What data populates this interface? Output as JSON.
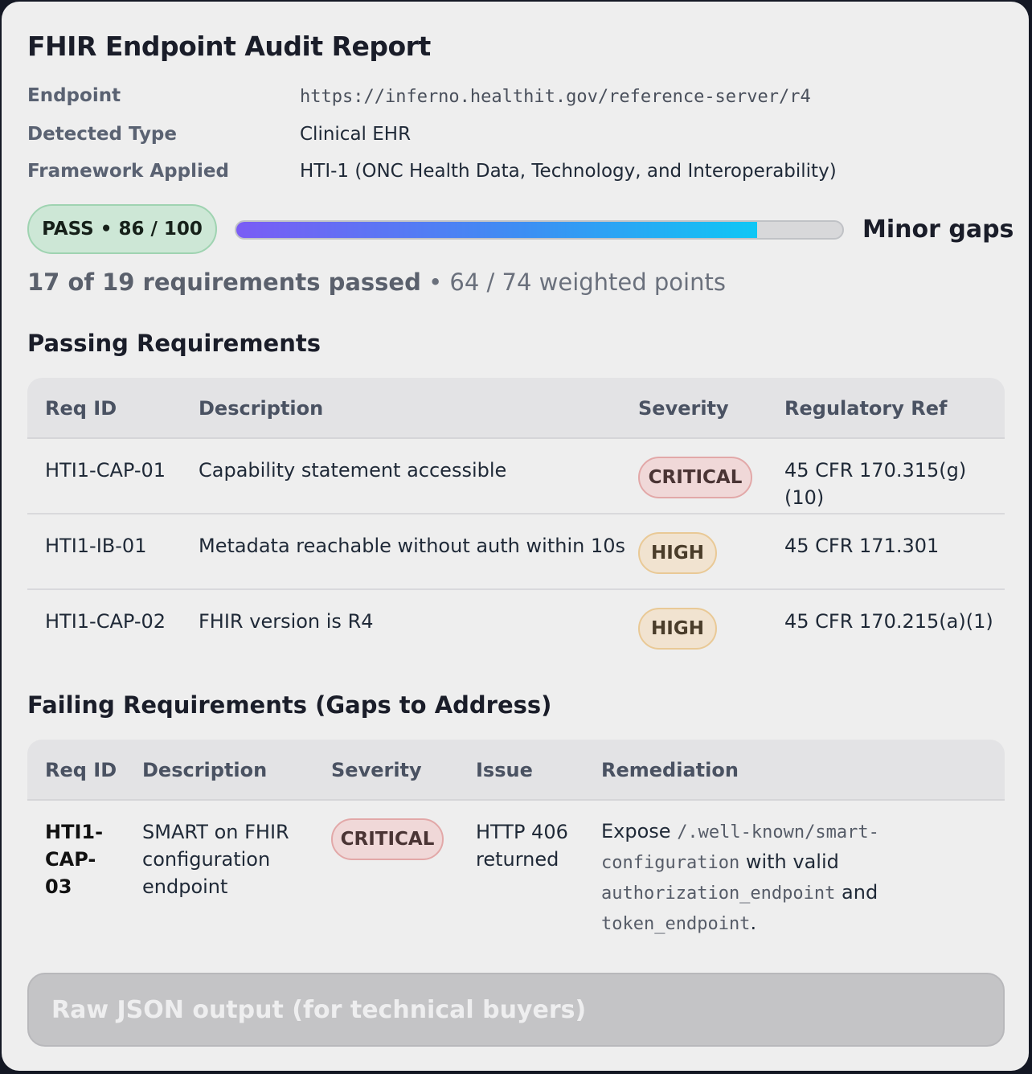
{
  "report": {
    "title": "FHIR Endpoint Audit Report",
    "meta": [
      {
        "label": "Endpoint",
        "value": "https://inferno.healthit.gov/reference-server/r4"
      },
      {
        "label": "Detected Type",
        "value": "Clinical EHR"
      },
      {
        "label": "Framework Applied",
        "value": "HTI-1 (ONC Health Data, Technology, and Interoperability)"
      }
    ]
  },
  "score": {
    "badge": "PASS • 86 / 100",
    "progress_percent": 86,
    "status_label": "Minor gaps",
    "summary_strong": "17 of 19 requirements passed",
    "summary_rest": " • 64 / 74 weighted points",
    "colors": {
      "bar_start": "#7a5cf5",
      "bar_end": "#0fc7f5",
      "pass_bg": "#cde7d6"
    }
  },
  "passing": {
    "title": "Passing Requirements",
    "headers": [
      "Req ID",
      "Description",
      "Severity",
      "Regulatory Ref"
    ],
    "rows": [
      {
        "id": "HTI1-CAP-01",
        "description": "Capability statement accessible",
        "severity": "CRITICAL",
        "ref": "45 CFR 170.315(g)(10)"
      },
      {
        "id": "HTI1-IB-01",
        "description": "Metadata reachable without auth within 10s",
        "severity": "HIGH",
        "ref": "45 CFR 171.301"
      },
      {
        "id": "HTI1-CAP-02",
        "description": "FHIR version is R4",
        "severity": "HIGH",
        "ref": "45 CFR 170.215(a)(1)"
      }
    ]
  },
  "failing": {
    "title": "Failing Requirements (Gaps to Address)",
    "headers": [
      "Req ID",
      "Description",
      "Severity",
      "Issue",
      "Remediation"
    ],
    "rows": [
      {
        "id": "HTI1-CAP-03",
        "id_lines": [
          "HTI1-",
          "CAP-",
          "03"
        ],
        "description": "SMART on FHIR configuration endpoint",
        "description_lines": [
          "SMART on FHIR",
          "configuration",
          "endpoint"
        ],
        "severity": "CRITICAL",
        "issue": "HTTP 406 returned",
        "issue_lines": [
          "HTTP 406",
          "returned"
        ],
        "remediation": {
          "t1": "Expose ",
          "c1a": "/.well-known/smart-",
          "c1b": "configuration",
          "t2": " with valid",
          "c2": "authorization_endpoint",
          "t3": " and",
          "c3": "token_endpoint",
          "t4": "."
        }
      }
    ]
  },
  "raw_json_button": "Raw JSON output (for technical buyers)"
}
